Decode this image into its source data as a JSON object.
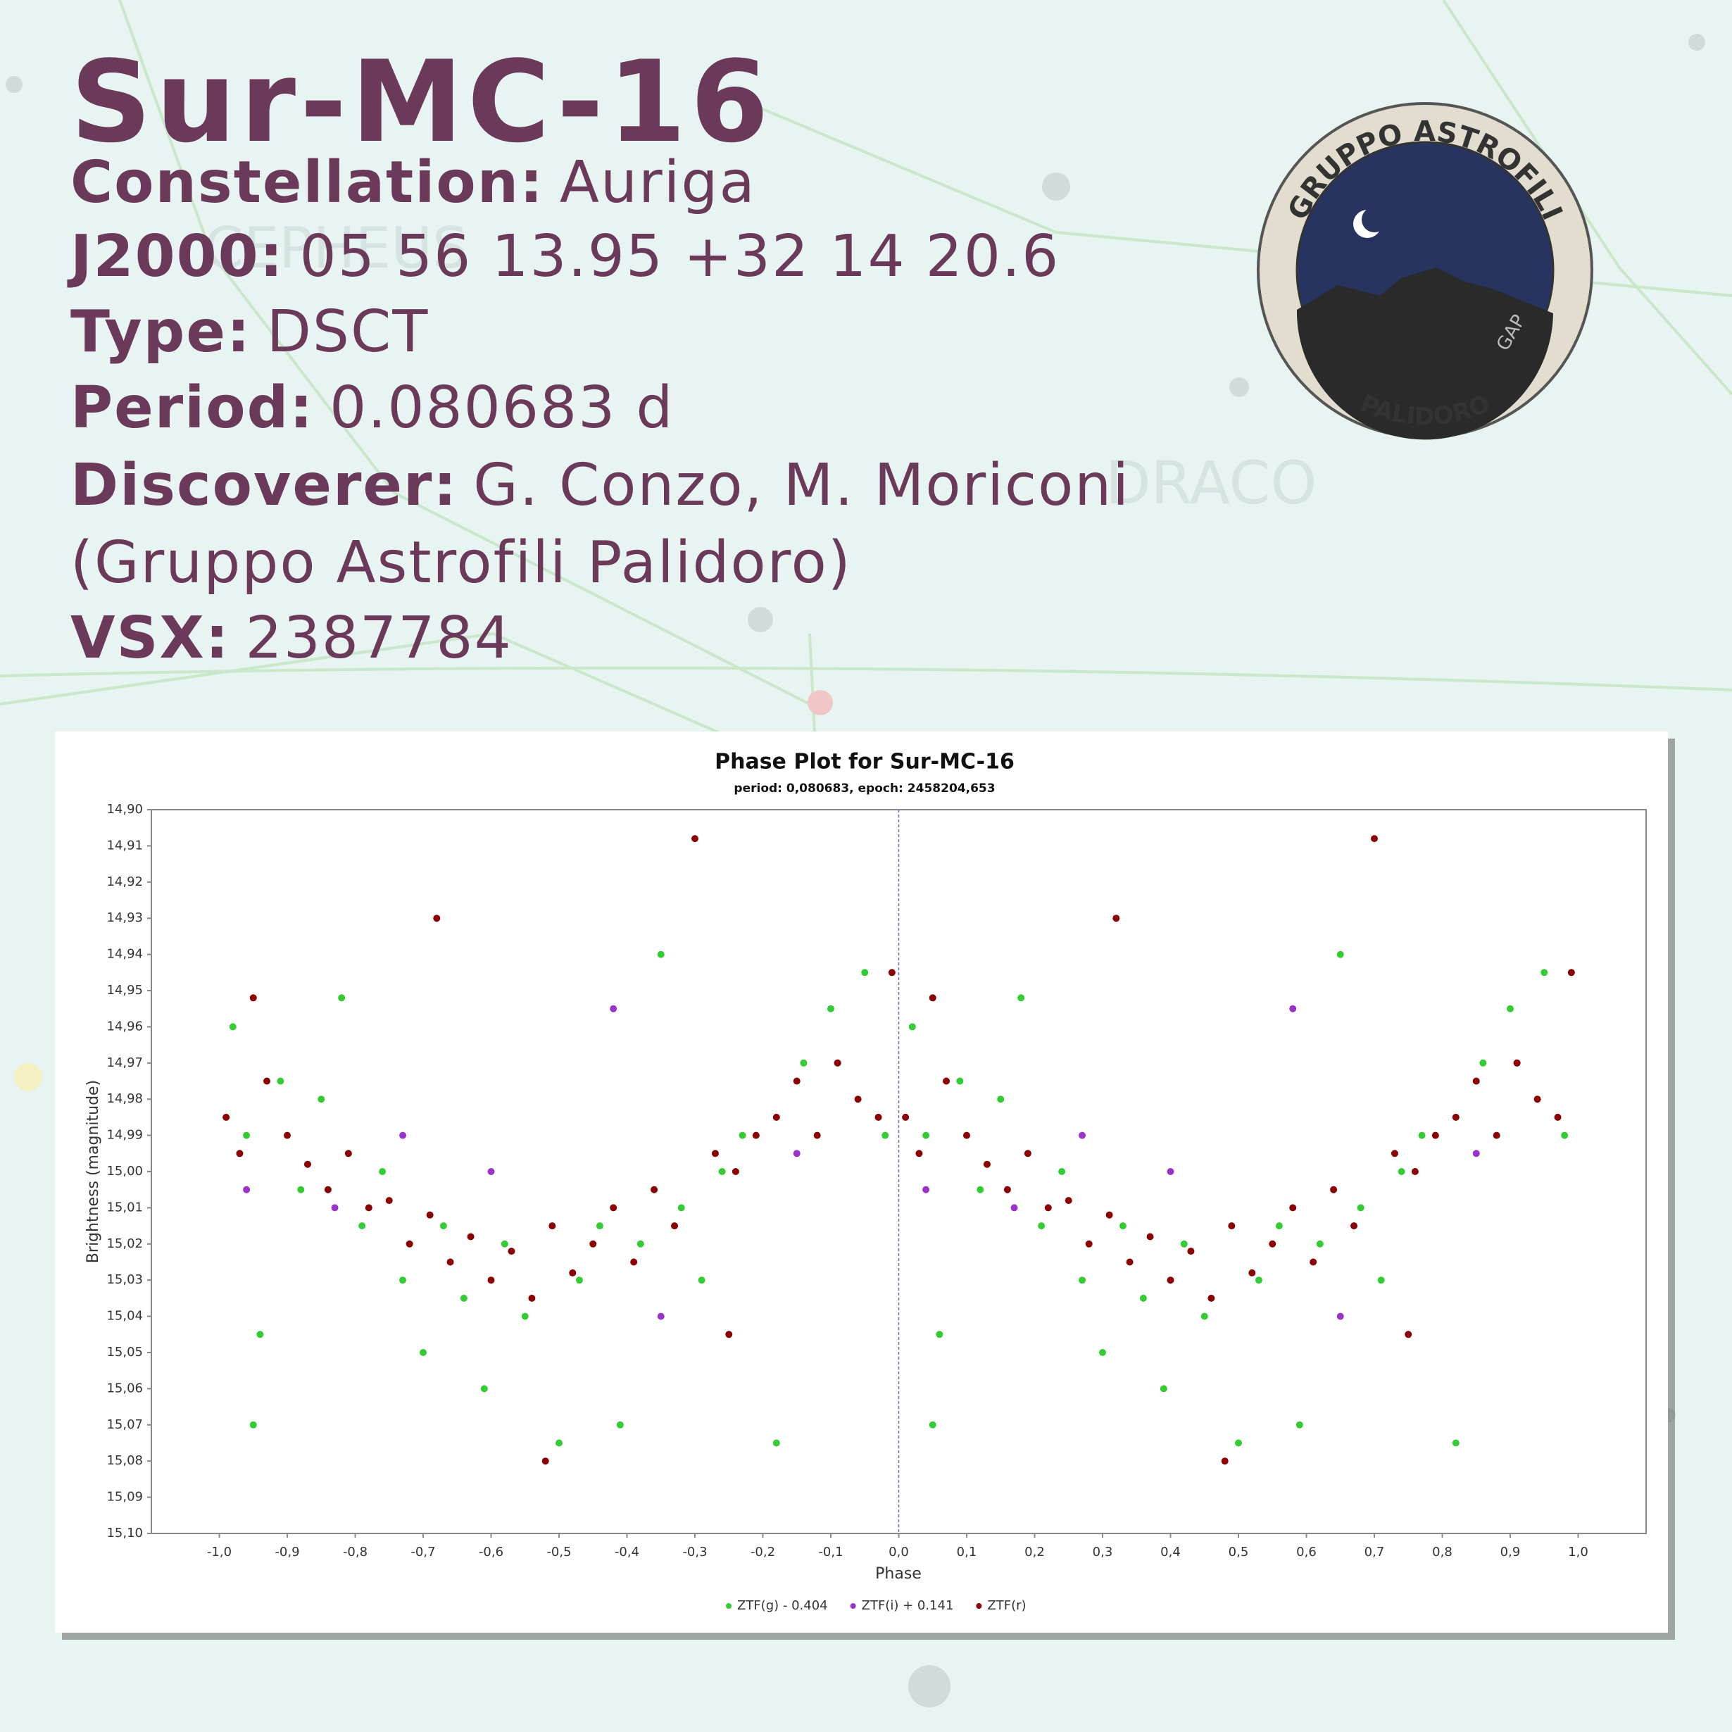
{
  "background_labels": [
    "CEPHEUS",
    "DRACO"
  ],
  "header": {
    "title": "Sur-MC-16",
    "fields": [
      {
        "key": "Constellation:",
        "value": "Auriga"
      },
      {
        "key": "J2000:",
        "value": "05 56 13.95 +32 14 20.6"
      },
      {
        "key": "Type:",
        "value": "DSCT"
      },
      {
        "key": "Period:",
        "value": "0.080683 d"
      },
      {
        "key": "Discoverer:",
        "value": "G. Conzo, M. Moriconi"
      },
      {
        "key": "VSX:",
        "value": "2387784"
      }
    ],
    "affiliation": "(Gruppo Astrofili Palidoro)"
  },
  "logo": {
    "top": "GRUPPO ASTROFILI",
    "bottom": "PALIDORO",
    "mark": "GAP"
  },
  "chart_data": {
    "type": "scatter",
    "title": "Phase Plot for Sur-MC-16",
    "subtitle": "period: 0,080683, epoch: 2458204,653",
    "x_label": "Phase",
    "y_label": "Brightness (magnitude)",
    "xlim": [
      -1.1,
      1.1
    ],
    "ylim": [
      14.9,
      15.1
    ],
    "y_inverted": true,
    "grid": false,
    "zero_line": true,
    "legend": "bottom",
    "xticks": [
      {
        "value": -1.0,
        "label": "-1,0"
      },
      {
        "value": -0.9,
        "label": "-0,9"
      },
      {
        "value": -0.8,
        "label": "-0,8"
      },
      {
        "value": -0.7,
        "label": "-0,7"
      },
      {
        "value": -0.6,
        "label": "-0,6"
      },
      {
        "value": -0.5,
        "label": "-0,5"
      },
      {
        "value": -0.4,
        "label": "-0,4"
      },
      {
        "value": -0.3,
        "label": "-0,3"
      },
      {
        "value": -0.2,
        "label": "-0,2"
      },
      {
        "value": -0.1,
        "label": "-0,1"
      },
      {
        "value": 0.0,
        "label": "0,0"
      },
      {
        "value": 0.1,
        "label": "0,1"
      },
      {
        "value": 0.2,
        "label": "0,2"
      },
      {
        "value": 0.3,
        "label": "0,3"
      },
      {
        "value": 0.4,
        "label": "0,4"
      },
      {
        "value": 0.5,
        "label": "0,5"
      },
      {
        "value": 0.6,
        "label": "0,6"
      },
      {
        "value": 0.7,
        "label": "0,7"
      },
      {
        "value": 0.8,
        "label": "0,8"
      },
      {
        "value": 0.9,
        "label": "0,9"
      },
      {
        "value": 1.0,
        "label": "1,0"
      }
    ],
    "yticks": [
      {
        "value": 14.9,
        "label": "14,90"
      },
      {
        "value": 14.91,
        "label": "14,91"
      },
      {
        "value": 14.92,
        "label": "14,92"
      },
      {
        "value": 14.93,
        "label": "14,93"
      },
      {
        "value": 14.94,
        "label": "14,94"
      },
      {
        "value": 14.95,
        "label": "14,95"
      },
      {
        "value": 14.96,
        "label": "14,96"
      },
      {
        "value": 14.97,
        "label": "14,97"
      },
      {
        "value": 14.98,
        "label": "14,98"
      },
      {
        "value": 14.99,
        "label": "14,99"
      },
      {
        "value": 15.0,
        "label": "15,00"
      },
      {
        "value": 15.01,
        "label": "15,01"
      },
      {
        "value": 15.02,
        "label": "15,02"
      },
      {
        "value": 15.03,
        "label": "15,03"
      },
      {
        "value": 15.04,
        "label": "15,04"
      },
      {
        "value": 15.05,
        "label": "15,05"
      },
      {
        "value": 15.06,
        "label": "15,06"
      },
      {
        "value": 15.07,
        "label": "15,07"
      },
      {
        "value": 15.08,
        "label": "15,08"
      },
      {
        "value": 15.09,
        "label": "15,09"
      },
      {
        "value": 15.1,
        "label": "15,10"
      }
    ],
    "series": [
      {
        "name": "ZTF(g) - 0.404",
        "color": "#33cc33",
        "x": [
          -0.98,
          -0.96,
          -0.94,
          -0.95,
          -0.91,
          -0.88,
          -0.85,
          -0.82,
          -0.79,
          -0.76,
          -0.73,
          -0.7,
          -0.67,
          -0.64,
          -0.61,
          -0.58,
          -0.55,
          -0.5,
          -0.47,
          -0.44,
          -0.41,
          -0.38,
          -0.35,
          -0.32,
          -0.29,
          -0.26,
          -0.23,
          -0.18,
          -0.14,
          -0.1,
          -0.05,
          -0.02,
          0.02,
          0.04,
          0.06,
          0.05,
          0.09,
          0.12,
          0.15,
          0.18,
          0.21,
          0.24,
          0.27,
          0.3,
          0.33,
          0.36,
          0.39,
          0.42,
          0.45,
          0.5,
          0.53,
          0.56,
          0.59,
          0.62,
          0.65,
          0.68,
          0.71,
          0.74,
          0.77,
          0.82,
          0.86,
          0.9,
          0.95,
          0.98
        ],
        "values": [
          14.96,
          14.99,
          15.045,
          15.07,
          14.975,
          15.005,
          14.98,
          14.952,
          15.015,
          15.0,
          15.03,
          15.05,
          15.015,
          15.035,
          15.06,
          15.02,
          15.04,
          15.075,
          15.03,
          15.015,
          15.07,
          15.02,
          14.94,
          15.01,
          15.03,
          15.0,
          14.99,
          15.075,
          14.97,
          14.955,
          14.945,
          14.99,
          14.96,
          14.99,
          15.045,
          15.07,
          14.975,
          15.005,
          14.98,
          14.952,
          15.015,
          15.0,
          15.03,
          15.05,
          15.015,
          15.035,
          15.06,
          15.02,
          15.04,
          15.075,
          15.03,
          15.015,
          15.07,
          15.02,
          14.94,
          15.01,
          15.03,
          15.0,
          14.99,
          15.075,
          14.97,
          14.955,
          14.945,
          14.99
        ]
      },
      {
        "name": "ZTF(i) + 0.141",
        "color": "#9933cc",
        "x": [
          -0.96,
          -0.83,
          -0.73,
          -0.6,
          -0.42,
          -0.35,
          -0.15,
          -0.09,
          0.04,
          0.17,
          0.27,
          0.4,
          0.58,
          0.65,
          0.85,
          0.91
        ],
        "values": [
          15.005,
          15.01,
          14.99,
          15.0,
          14.955,
          15.04,
          14.995,
          14.97,
          15.005,
          15.01,
          14.99,
          15.0,
          14.955,
          15.04,
          14.995,
          14.97
        ]
      },
      {
        "name": "ZTF(r)",
        "color": "#8b0000",
        "x": [
          -0.99,
          -0.97,
          -0.95,
          -0.93,
          -0.9,
          -0.87,
          -0.84,
          -0.81,
          -0.78,
          -0.75,
          -0.72,
          -0.69,
          -0.66,
          -0.63,
          -0.6,
          -0.57,
          -0.54,
          -0.51,
          -0.48,
          -0.45,
          -0.42,
          -0.39,
          -0.36,
          -0.33,
          -0.3,
          -0.27,
          -0.24,
          -0.21,
          -0.18,
          -0.15,
          -0.12,
          -0.09,
          -0.06,
          -0.03,
          -0.01,
          -0.68,
          -0.52,
          -0.25,
          0.01,
          0.03,
          0.05,
          0.07,
          0.1,
          0.13,
          0.16,
          0.19,
          0.22,
          0.25,
          0.28,
          0.31,
          0.34,
          0.37,
          0.4,
          0.43,
          0.46,
          0.49,
          0.52,
          0.55,
          0.58,
          0.61,
          0.64,
          0.67,
          0.7,
          0.73,
          0.76,
          0.79,
          0.82,
          0.85,
          0.88,
          0.91,
          0.94,
          0.97,
          0.99,
          0.32,
          0.48,
          0.75
        ],
        "values": [
          14.985,
          14.995,
          14.952,
          14.975,
          14.99,
          14.998,
          15.005,
          14.995,
          15.01,
          15.008,
          15.02,
          15.012,
          15.025,
          15.018,
          15.03,
          15.022,
          15.035,
          15.015,
          15.028,
          15.02,
          15.01,
          15.025,
          15.005,
          15.015,
          14.908,
          14.995,
          15.0,
          14.99,
          14.985,
          14.975,
          14.99,
          14.97,
          14.98,
          14.985,
          14.945,
          14.93,
          15.08,
          15.045,
          14.985,
          14.995,
          14.952,
          14.975,
          14.99,
          14.998,
          15.005,
          14.995,
          15.01,
          15.008,
          15.02,
          15.012,
          15.025,
          15.018,
          15.03,
          15.022,
          15.035,
          15.015,
          15.028,
          15.02,
          15.01,
          15.025,
          15.005,
          15.015,
          14.908,
          14.995,
          15.0,
          14.99,
          14.985,
          14.975,
          14.99,
          14.97,
          14.98,
          14.985,
          14.945,
          14.93,
          15.08,
          15.045
        ]
      }
    ]
  }
}
